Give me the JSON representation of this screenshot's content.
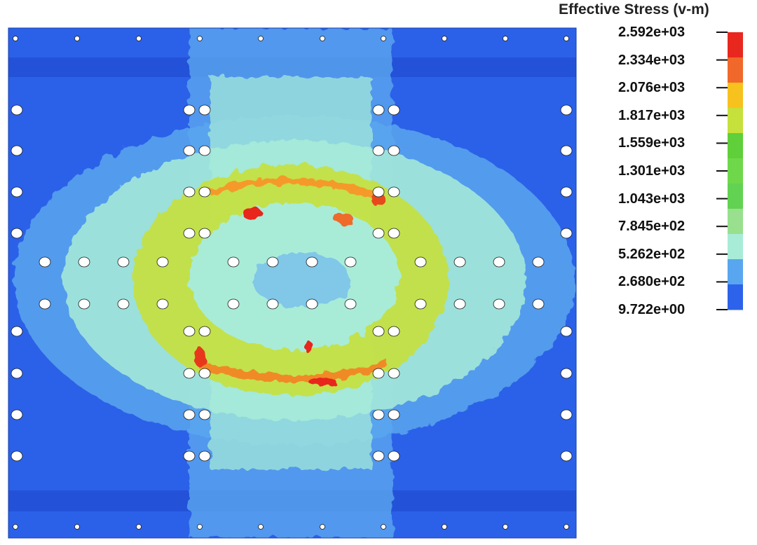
{
  "legend": {
    "title": "Effective Stress (v-m)",
    "labels": [
      "2.592e+03",
      "2.334e+03",
      "2.076e+03",
      "1.817e+03",
      "1.559e+03",
      "1.301e+03",
      "1.043e+03",
      "7.845e+02",
      "5.262e+02",
      "2.680e+02",
      "9.722e+00"
    ],
    "colors": [
      "#e8281e",
      "#f0692a",
      "#f7c21d",
      "#c6e03c",
      "#5fcf3a",
      "#6fd84a",
      "#62d252",
      "#98e08e",
      "#a8ecd8",
      "#59a6f0",
      "#2c63ea"
    ]
  },
  "plot": {
    "background": "#2b61e8",
    "band": "#2352d8",
    "hole_color": "#ffffff"
  }
}
